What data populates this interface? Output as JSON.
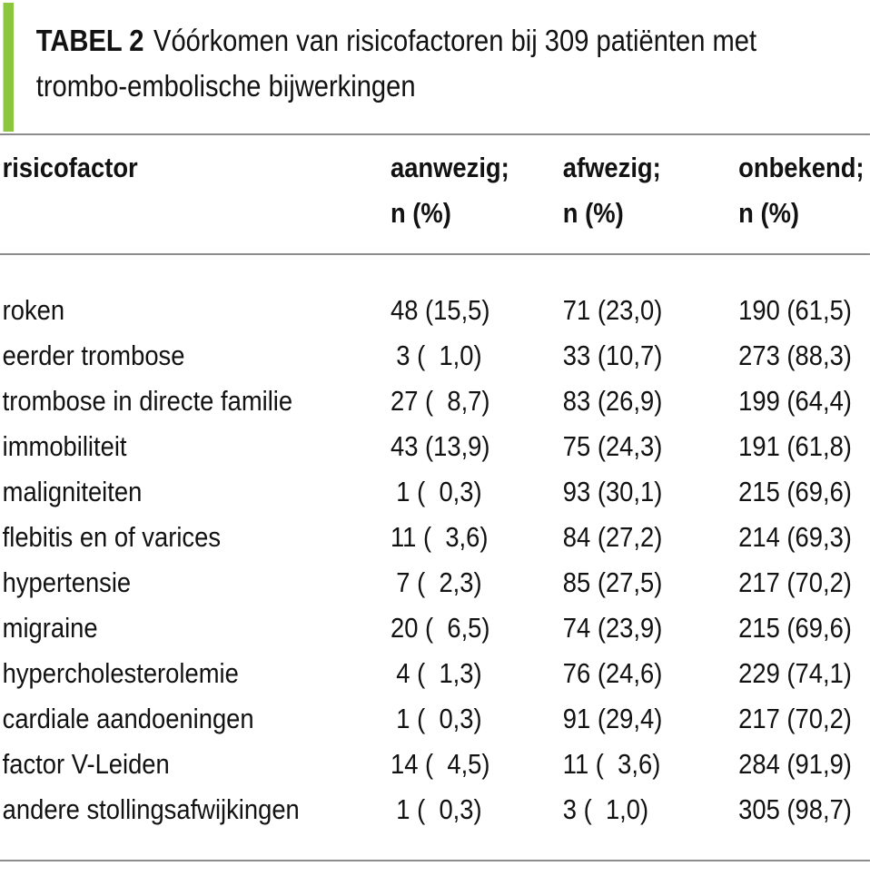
{
  "title": {
    "label": "TABEL 2",
    "line1": "Vóórkomen van risicofactoren bij 309 patiënten met",
    "line2": "trombo-embolische bijwerkingen"
  },
  "table": {
    "columns": [
      {
        "header": "risicofactor",
        "subheader": ""
      },
      {
        "header": "aanwezig;",
        "subheader": "n (%)"
      },
      {
        "header": "afwezig;",
        "subheader": "n (%)"
      },
      {
        "header": "onbekend;",
        "subheader": "n (%)"
      }
    ],
    "rows": [
      {
        "risicofactor": "roken",
        "aanwezig": "48 (15,5)",
        "afwezig": "71 (23,0)",
        "onbekend": "190 (61,5)"
      },
      {
        "risicofactor": "eerder trombose",
        "aanwezig": "3 ( 1,0)",
        "afwezig": "33 (10,7)",
        "onbekend": "273 (88,3)"
      },
      {
        "risicofactor": "trombose in directe familie",
        "aanwezig": "27 ( 8,7)",
        "afwezig": "83 (26,9)",
        "onbekend": "199 (64,4)"
      },
      {
        "risicofactor": "immobiliteit",
        "aanwezig": "43 (13,9)",
        "afwezig": "75 (24,3)",
        "onbekend": "191 (61,8)"
      },
      {
        "risicofactor": "maligniteiten",
        "aanwezig": "1 ( 0,3)",
        "afwezig": "93 (30,1)",
        "onbekend": "215 (69,6)"
      },
      {
        "risicofactor": "flebitis en of varices",
        "aanwezig": "11 ( 3,6)",
        "afwezig": "84 (27,2)",
        "onbekend": "214 (69,3)"
      },
      {
        "risicofactor": "hypertensie",
        "aanwezig": "7 ( 2,3)",
        "afwezig": "85 (27,5)",
        "onbekend": "217 (70,2)"
      },
      {
        "risicofactor": "migraine",
        "aanwezig": "20 ( 6,5)",
        "afwezig": "74 (23,9)",
        "onbekend": "215 (69,6)"
      },
      {
        "risicofactor": "hypercholesterolemie",
        "aanwezig": "4 ( 1,3)",
        "afwezig": "76 (24,6)",
        "onbekend": "229 (74,1)"
      },
      {
        "risicofactor": "cardiale aandoeningen",
        "aanwezig": "1 ( 0,3)",
        "afwezig": "91 (29,4)",
        "onbekend": "217 (70,2)"
      },
      {
        "risicofactor": "factor V-Leiden",
        "aanwezig": "14 ( 4,5)",
        "afwezig": "11 ( 3,6)",
        "onbekend": "284 (91,9)"
      },
      {
        "risicofactor": "andere stollingsafwijkingen",
        "aanwezig": "1 ( 0,3)",
        "afwezig": "3 ( 1,0)",
        "onbekend": "305 (98,7)"
      }
    ]
  },
  "colors": {
    "accent_bar": "#8CC63E",
    "rule": "#8c8c8c",
    "text": "#121212",
    "background": "#ffffff"
  }
}
